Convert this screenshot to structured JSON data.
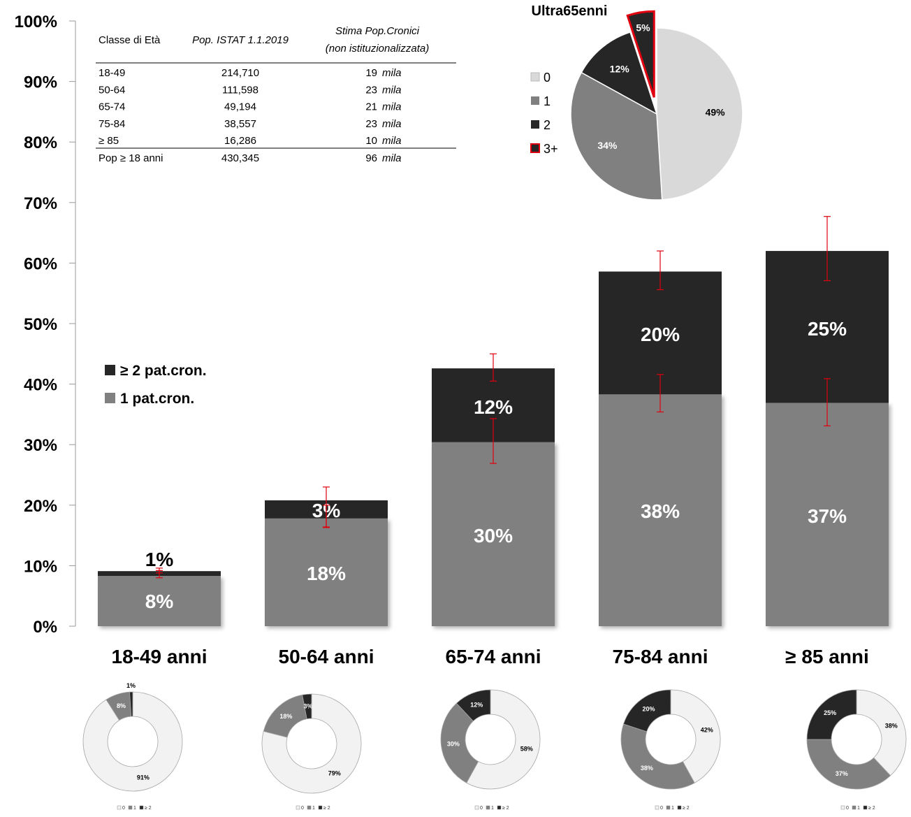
{
  "colors": {
    "one": "#808080",
    "two": "#262626",
    "zero": "#d9d9d9",
    "zero_light": "#f2f2f2",
    "error": "#e0000f",
    "highlight": "#e0000f"
  },
  "chart_data": [
    {
      "type": "bar",
      "stacked": true,
      "y_ticks": [
        "0%",
        "10%",
        "20%",
        "30%",
        "40%",
        "50%",
        "60%",
        "70%",
        "80%",
        "90%",
        "100%"
      ],
      "ylim": [
        0,
        100
      ],
      "categories": [
        "18-49 anni",
        "50-64 anni",
        "65-74 anni",
        "75-84 anni",
        "≥ 85 anni"
      ],
      "series": [
        {
          "name": "1 pat.cron.",
          "values": [
            8.3,
            17.8,
            30.4,
            38.3,
            36.9
          ],
          "labels": [
            "8%",
            "18%",
            "30%",
            "38%",
            "37%"
          ],
          "error": [
            [
              8.0,
              9.2
            ],
            [
              16.3,
              20.0
            ],
            [
              26.9,
              34.3
            ],
            [
              35.4,
              41.6
            ],
            [
              33.1,
              40.9
            ]
          ]
        },
        {
          "name": "≥ 2 pat.cron.",
          "values": [
            0.8,
            3.0,
            12.2,
            20.3,
            25.1
          ],
          "labels": [
            "1%",
            "3%",
            "12%",
            "20%",
            "25%"
          ],
          "error": [
            [
              8.8,
              9.6
            ],
            [
              16.4,
              23.0
            ],
            [
              40.5,
              45.0
            ],
            [
              55.6,
              62.0
            ],
            [
              57.1,
              67.7
            ]
          ]
        }
      ],
      "legend": [
        {
          "label": "≥ 2 pat.cron.",
          "color": "#262626"
        },
        {
          "label": "1 pat.cron.",
          "color": "#808080"
        }
      ]
    },
    {
      "type": "pie",
      "title": "Ultra65enni",
      "slices": [
        {
          "label": "0",
          "value": 49,
          "text": "49%",
          "color": "#d9d9d9"
        },
        {
          "label": "1",
          "value": 34,
          "text": "34%",
          "color": "#808080"
        },
        {
          "label": "2",
          "value": 12,
          "text": "12%",
          "color": "#262626"
        },
        {
          "label": "3+",
          "value": 5,
          "text": "5%",
          "color": "#262626",
          "exploded": true
        }
      ]
    },
    {
      "type": "pie",
      "subtype": "donut",
      "donuts": [
        {
          "category": "18-49 anni",
          "values": [
            91,
            8,
            1
          ],
          "texts": [
            "91%",
            "8%",
            "1%"
          ]
        },
        {
          "category": "50-64 anni",
          "values": [
            79,
            18,
            3
          ],
          "texts": [
            "79%",
            "18%",
            "3%"
          ]
        },
        {
          "category": "65-74 anni",
          "values": [
            58,
            30,
            12
          ],
          "texts": [
            "58%",
            "30%",
            "12%"
          ]
        },
        {
          "category": "75-84 anni",
          "values": [
            42,
            38,
            20
          ],
          "texts": [
            "42%",
            "38%",
            "20%"
          ]
        },
        {
          "category": "≥ 85 anni",
          "values": [
            38,
            37,
            25
          ],
          "texts": [
            "38%",
            "37%",
            "25%"
          ]
        }
      ],
      "legend": [
        "0",
        "1",
        "≥ 2"
      ],
      "colors": [
        "#f2f2f2",
        "#808080",
        "#262626"
      ]
    },
    {
      "type": "table",
      "headers": [
        "Classe di Età",
        "Pop. ISTAT 1.1.2019",
        "Stima Pop.Cronici",
        "(non istituzionalizzata)"
      ],
      "rows": [
        [
          "18-49",
          "214,710",
          "19",
          "mila"
        ],
        [
          "50-64",
          "111,598",
          "23",
          "mila"
        ],
        [
          "65-74",
          "49,194",
          "21",
          "mila"
        ],
        [
          "75-84",
          "38,557",
          "23",
          "mila"
        ],
        [
          "≥ 85",
          "16,286",
          "10",
          "mila"
        ]
      ],
      "total": [
        "Pop ≥ 18 anni",
        "430,345",
        "96",
        "mila"
      ]
    }
  ]
}
